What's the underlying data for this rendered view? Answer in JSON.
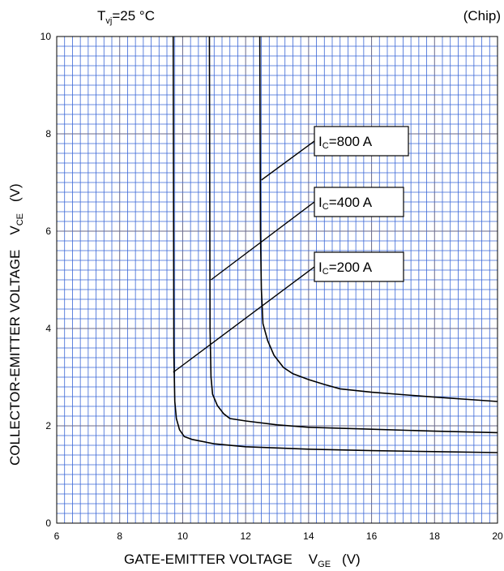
{
  "chart_data": {
    "type": "line",
    "header_left": {
      "main": "T",
      "sub": "vj",
      "rest": "=25 °C"
    },
    "header_right": "(Chip)",
    "xlabel": {
      "main": "GATE-EMITTER VOLTAGE",
      "sym": "V",
      "sub": "GE",
      "unit": "(V)"
    },
    "ylabel": {
      "main": "COLLECTOR-EMITTER VOLTAGE",
      "sym": "V",
      "sub": "CE",
      "unit": "(V)"
    },
    "xlim": [
      6,
      20
    ],
    "ylim": [
      0,
      10
    ],
    "x_ticks": [
      "6",
      "8",
      "10",
      "12",
      "14",
      "16",
      "18",
      "20"
    ],
    "y_ticks": [
      "0",
      "2",
      "4",
      "6",
      "8",
      "10"
    ],
    "grid": true,
    "grid_color": "#3a66d6",
    "line_color": "#000000",
    "series": [
      {
        "name": "IC=200 A",
        "label": {
          "sym": "I",
          "sub": "C",
          "rest": "=200 A"
        },
        "anchor": [
          9.7,
          3.1
        ],
        "box": [
          10.2,
          3.4,
          11.2,
          3.4
        ],
        "points": [
          [
            9.7,
            10
          ],
          [
            9.72,
            3.5
          ],
          [
            9.75,
            2.5
          ],
          [
            9.8,
            2.15
          ],
          [
            9.9,
            1.92
          ],
          [
            10.05,
            1.78
          ],
          [
            10.3,
            1.72
          ],
          [
            11,
            1.63
          ],
          [
            12,
            1.57
          ],
          [
            14,
            1.52
          ],
          [
            16,
            1.49
          ],
          [
            18,
            1.47
          ],
          [
            20,
            1.45
          ]
        ]
      },
      {
        "name": "IC=400 A",
        "label": {
          "sym": "I",
          "sub": "C",
          "rest": "=400 A"
        },
        "anchor": [
          10.9,
          5.0
        ],
        "box": [
          10.2,
          3.4,
          11.2,
          3.4
        ],
        "points": [
          [
            10.85,
            10
          ],
          [
            10.87,
            4.0
          ],
          [
            10.9,
            3.0
          ],
          [
            10.95,
            2.65
          ],
          [
            11.1,
            2.42
          ],
          [
            11.3,
            2.25
          ],
          [
            11.5,
            2.15
          ],
          [
            12,
            2.1
          ],
          [
            13,
            2.02
          ],
          [
            14,
            1.97
          ],
          [
            16,
            1.93
          ],
          [
            18,
            1.89
          ],
          [
            20,
            1.86
          ]
        ]
      },
      {
        "name": "IC=800 A",
        "label": {
          "sym": "I",
          "sub": "C",
          "rest": "=800 A"
        },
        "anchor": [
          12.5,
          7.05
        ],
        "box": [
          10.2,
          3.4,
          11.2,
          3.4
        ],
        "points": [
          [
            12.45,
            10
          ],
          [
            12.47,
            6.0
          ],
          [
            12.5,
            4.8
          ],
          [
            12.55,
            4.1
          ],
          [
            12.7,
            3.75
          ],
          [
            12.9,
            3.45
          ],
          [
            13.2,
            3.2
          ],
          [
            13.5,
            3.07
          ],
          [
            14,
            2.95
          ],
          [
            14.5,
            2.85
          ],
          [
            15,
            2.76
          ],
          [
            16,
            2.69
          ],
          [
            18,
            2.59
          ],
          [
            20,
            2.5
          ]
        ]
      }
    ]
  }
}
